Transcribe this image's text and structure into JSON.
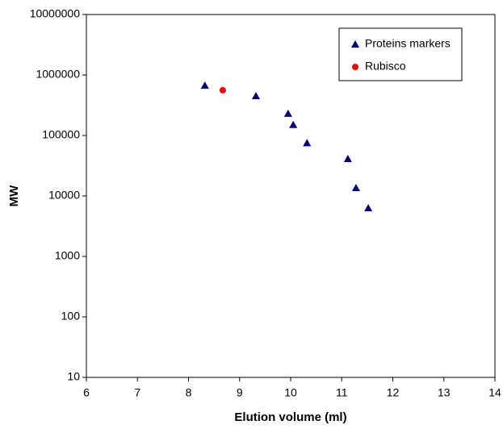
{
  "chart_data": {
    "type": "scatter",
    "xlabel": "Elution volume  (ml)",
    "ylabel": "MW",
    "xlim": [
      6,
      14
    ],
    "xticks": [
      6,
      7,
      8,
      9,
      10,
      11,
      12,
      13,
      14
    ],
    "ylim": [
      10,
      10000000
    ],
    "yticks": [
      10,
      100,
      1000,
      10000,
      100000,
      1000000,
      10000000
    ],
    "y_log_scale": true,
    "grid": false,
    "legend_position": "upper right",
    "series": [
      {
        "name": "Proteins markers",
        "color": "#000080",
        "marker": "triangle",
        "x": [
          8.32,
          9.32,
          9.95,
          10.05,
          10.32,
          11.12,
          11.28,
          11.52
        ],
        "values": [
          670000,
          450000,
          230000,
          150000,
          75000,
          41000,
          13600,
          6300
        ]
      },
      {
        "name": "Rubisco",
        "color": "#ff0000",
        "marker": "circle",
        "x": [
          8.67
        ],
        "values": [
          560000
        ]
      }
    ]
  }
}
